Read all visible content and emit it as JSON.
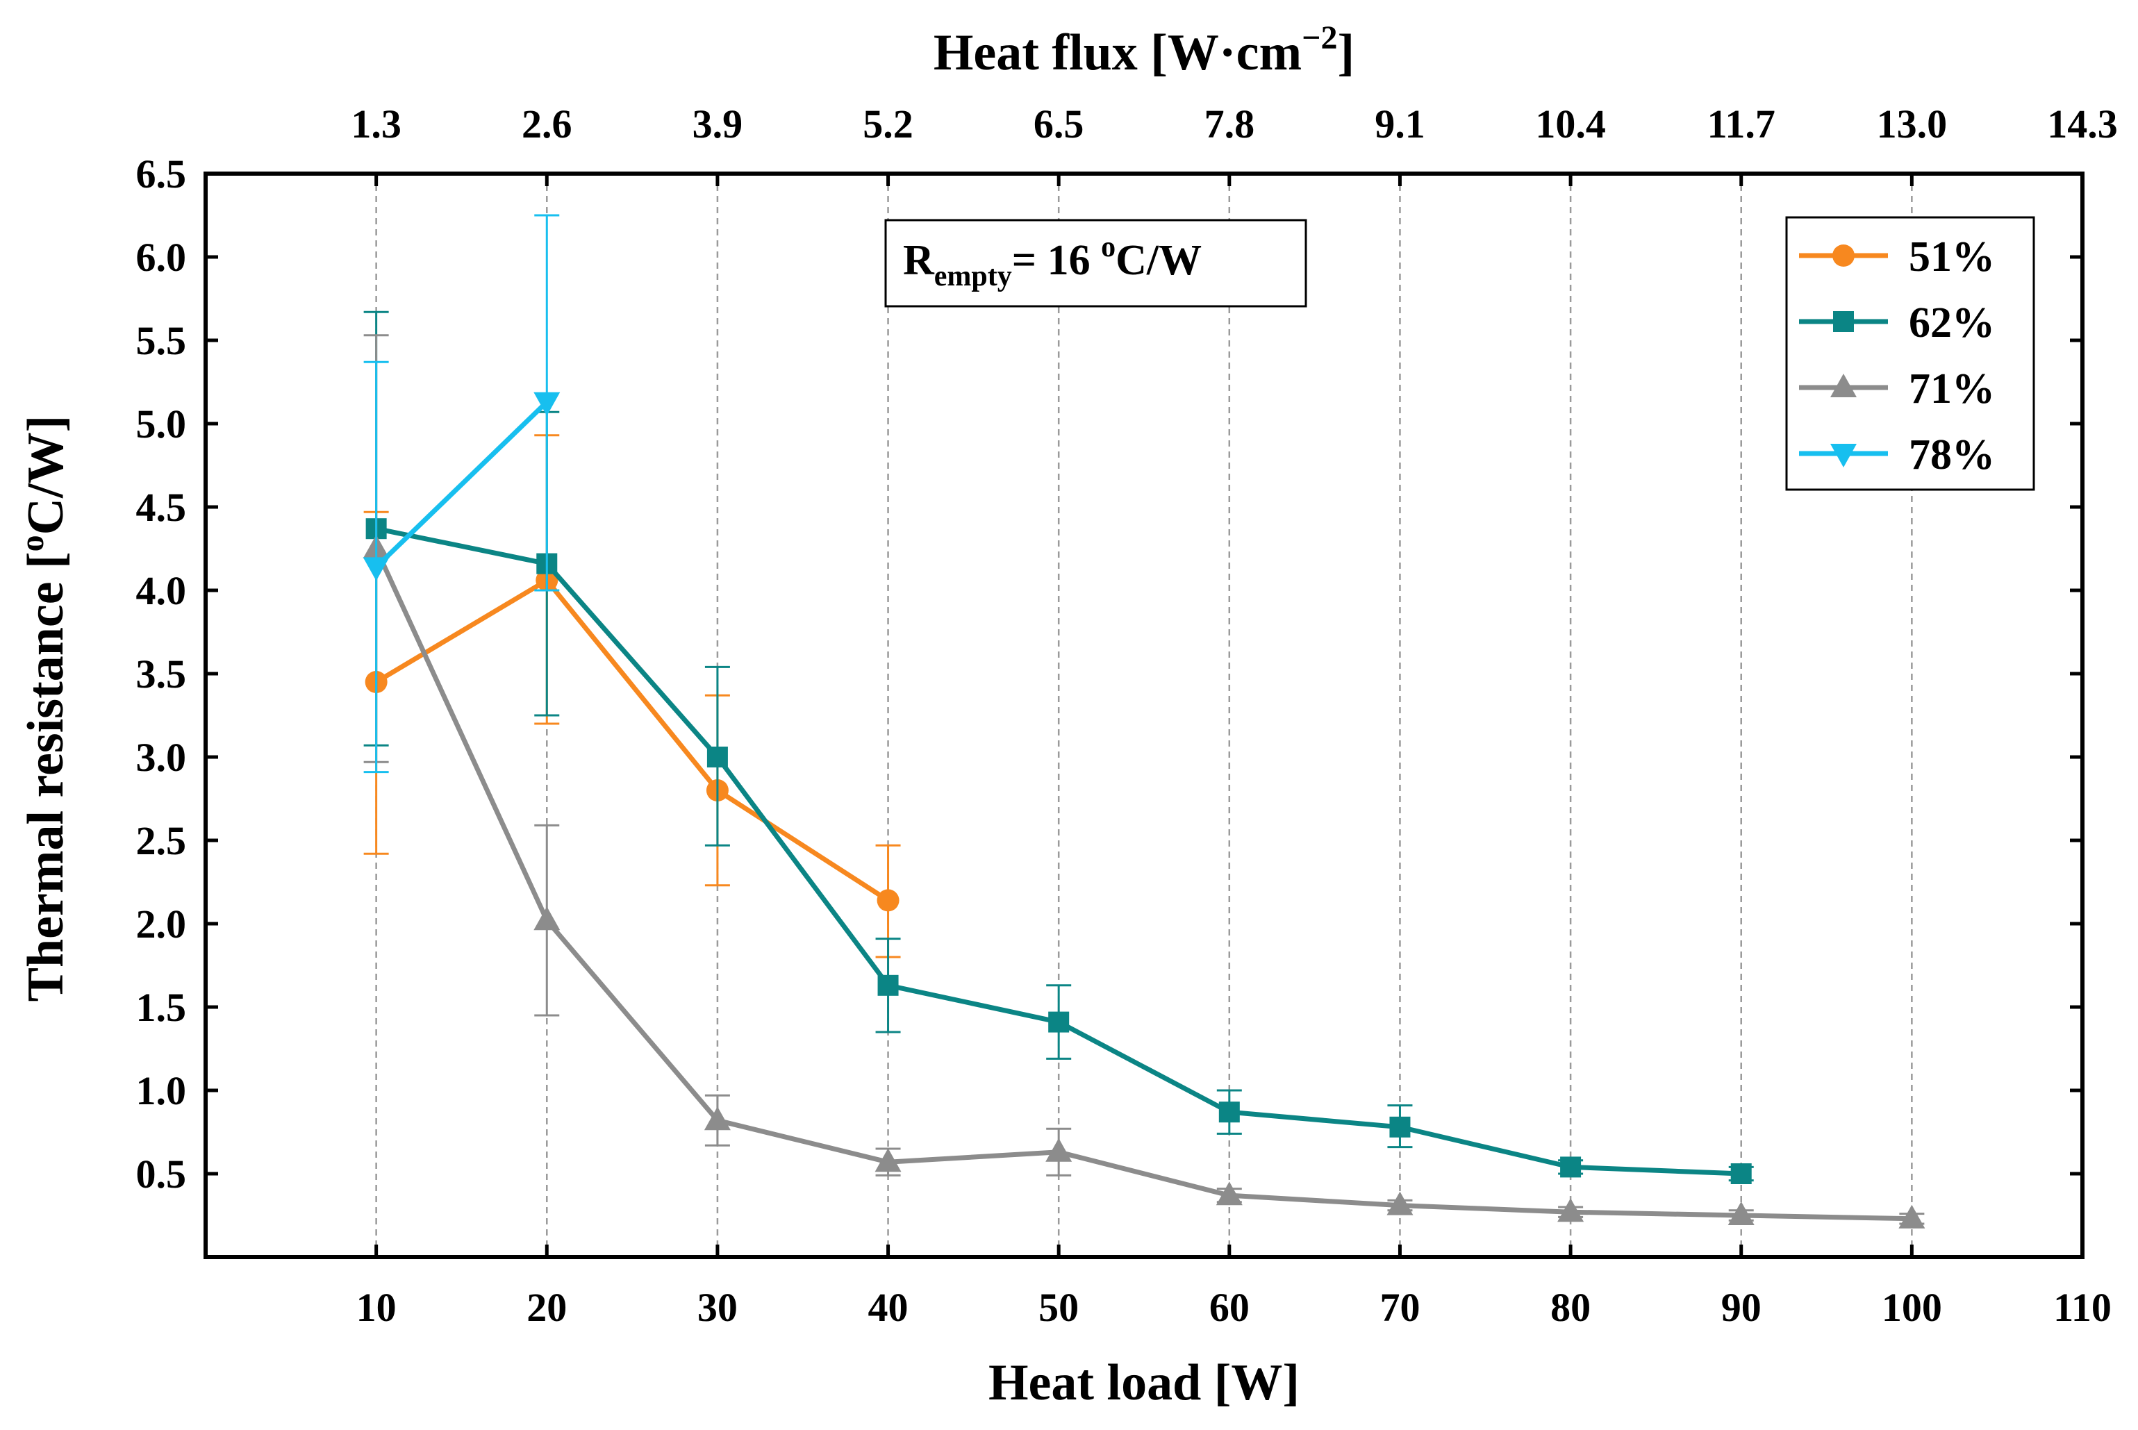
{
  "chart_data": {
    "type": "line",
    "xlabel": "Heat load [W]",
    "x2label_main": "Heat flux [W·cm",
    "x2label_sup": "−2",
    "x2label_end": "]",
    "ylabel": "Thermal resistance [",
    "ylabel_sup": "o",
    "ylabel_end": "C/W]",
    "xlim": [
      0,
      110
    ],
    "ylim": [
      0,
      6.5
    ],
    "x_ticks": [
      10,
      20,
      30,
      40,
      50,
      60,
      70,
      80,
      90,
      100,
      110
    ],
    "x_tick_labels": [
      "10",
      "20",
      "30",
      "40",
      "50",
      "60",
      "70",
      "80",
      "90",
      "100",
      "110"
    ],
    "x2_tick_labels": [
      "1.3",
      "2.6",
      "3.9",
      "5.2",
      "6.5",
      "7.8",
      "9.1",
      "10.4",
      "11.7",
      "13.0",
      "14.3"
    ],
    "y_ticks": [
      0.5,
      1.0,
      1.5,
      2.0,
      2.5,
      3.0,
      3.5,
      4.0,
      4.5,
      5.0,
      5.5,
      6.0,
      6.5
    ],
    "y_tick_labels": [
      "0.5",
      "1.0",
      "1.5",
      "2.0",
      "2.5",
      "3.0",
      "3.5",
      "4.0",
      "4.5",
      "5.0",
      "5.5",
      "6.0",
      "6.5"
    ],
    "grid": "vertical dashed",
    "legend_position": "top-right",
    "annotation": {
      "main": "R",
      "sub": "empty",
      "rest": "= 16 ",
      "sup": "o",
      "end": "C/W"
    },
    "series": [
      {
        "name": "51%",
        "color": "#F7881F",
        "marker": "circle",
        "x": [
          10,
          20,
          30,
          40
        ],
        "y": [
          3.45,
          4.06,
          2.8,
          2.14
        ],
        "err_low": [
          2.42,
          3.2,
          2.23,
          1.8
        ],
        "err_high": [
          4.47,
          4.93,
          3.37,
          2.47
        ]
      },
      {
        "name": "62%",
        "color": "#0B8585",
        "marker": "square",
        "x": [
          10,
          20,
          30,
          40,
          50,
          60,
          70,
          80,
          90
        ],
        "y": [
          4.37,
          4.16,
          3.0,
          1.63,
          1.41,
          0.87,
          0.78,
          0.54,
          0.5
        ],
        "err_low": [
          3.07,
          3.25,
          2.47,
          1.35,
          1.19,
          0.74,
          0.66,
          0.5,
          0.46
        ],
        "err_high": [
          5.67,
          5.07,
          3.54,
          1.91,
          1.63,
          1.0,
          0.91,
          0.58,
          0.54
        ]
      },
      {
        "name": "71%",
        "color": "#8C8C8C",
        "marker": "triangle-up",
        "x": [
          10,
          20,
          30,
          40,
          50,
          60,
          70,
          80,
          90,
          100
        ],
        "y": [
          4.25,
          2.02,
          0.82,
          0.57,
          0.63,
          0.37,
          0.31,
          0.27,
          0.25,
          0.23
        ],
        "err_low": [
          2.97,
          1.45,
          0.67,
          0.49,
          0.49,
          0.33,
          0.28,
          0.24,
          0.22,
          0.2
        ],
        "err_high": [
          5.53,
          2.59,
          0.97,
          0.65,
          0.77,
          0.41,
          0.34,
          0.3,
          0.28,
          0.26
        ]
      },
      {
        "name": "78%",
        "color": "#17BFEF",
        "marker": "triangle-down",
        "x": [
          10,
          20
        ],
        "y": [
          4.14,
          5.13
        ],
        "err_low": [
          2.91,
          4.0
        ],
        "err_high": [
          5.37,
          6.25
        ]
      }
    ]
  }
}
